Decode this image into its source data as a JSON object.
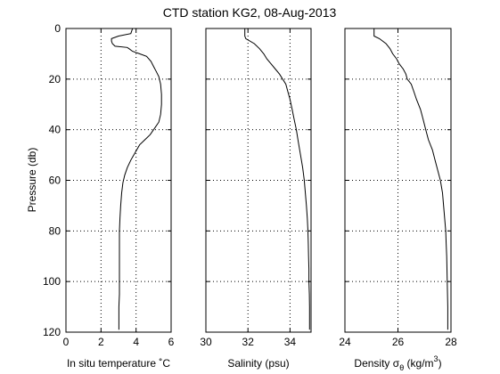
{
  "chart_data": {
    "title": "CTD station KG2, 08-Aug-2013",
    "shared_ylabel": "Pressure (db)",
    "shared_ylim": [
      0,
      120
    ],
    "y_reversed": true,
    "y_ticks": [
      0,
      20,
      40,
      60,
      80,
      100,
      120
    ],
    "grid": "dotted",
    "panels": [
      {
        "type": "line",
        "xlabel": "In situ temperature ˚C",
        "xlim": [
          0,
          6
        ],
        "x_ticks": [
          0,
          2,
          4,
          6
        ],
        "series": [
          {
            "points": [
              [
                3.8,
                0
              ],
              [
                3.7,
                2
              ],
              [
                3.0,
                3
              ],
              [
                2.6,
                4
              ],
              [
                2.6,
                5
              ],
              [
                2.65,
                6
              ],
              [
                2.8,
                7
              ],
              [
                3.5,
                7.5
              ],
              [
                3.6,
                8
              ],
              [
                3.8,
                9
              ],
              [
                4.2,
                10
              ],
              [
                4.6,
                11
              ],
              [
                4.85,
                13
              ],
              [
                5.0,
                15
              ],
              [
                5.15,
                17
              ],
              [
                5.3,
                19
              ],
              [
                5.4,
                22
              ],
              [
                5.45,
                26
              ],
              [
                5.45,
                30
              ],
              [
                5.4,
                34
              ],
              [
                5.3,
                37
              ],
              [
                5.1,
                39
              ],
              [
                4.8,
                42
              ],
              [
                4.5,
                44
              ],
              [
                4.2,
                46
              ],
              [
                3.95,
                49
              ],
              [
                3.7,
                52
              ],
              [
                3.5,
                55
              ],
              [
                3.35,
                58
              ],
              [
                3.25,
                61
              ],
              [
                3.18,
                65
              ],
              [
                3.12,
                70
              ],
              [
                3.08,
                75
              ],
              [
                3.05,
                80
              ],
              [
                3.05,
                85
              ],
              [
                3.05,
                90
              ],
              [
                3.05,
                95
              ],
              [
                3.05,
                100
              ],
              [
                3.05,
                105
              ],
              [
                3.02,
                110
              ],
              [
                3.02,
                115
              ],
              [
                3.02,
                119
              ]
            ]
          }
        ]
      },
      {
        "type": "line",
        "xlabel": "Salinity (psu)",
        "xlim": [
          30,
          35
        ],
        "x_ticks": [
          30,
          32,
          34
        ],
        "series": [
          {
            "points": [
              [
                31.85,
                0
              ],
              [
                31.85,
                3
              ],
              [
                31.9,
                4
              ],
              [
                32.3,
                6
              ],
              [
                32.55,
                8
              ],
              [
                32.75,
                10
              ],
              [
                32.9,
                12
              ],
              [
                33.1,
                14
              ],
              [
                33.3,
                16
              ],
              [
                33.5,
                18
              ],
              [
                33.65,
                20
              ],
              [
                33.8,
                22
              ],
              [
                33.9,
                25
              ],
              [
                34.0,
                28
              ],
              [
                34.1,
                32
              ],
              [
                34.2,
                36
              ],
              [
                34.3,
                40
              ],
              [
                34.4,
                45
              ],
              [
                34.5,
                50
              ],
              [
                34.6,
                55
              ],
              [
                34.68,
                60
              ],
              [
                34.73,
                65
              ],
              [
                34.78,
                70
              ],
              [
                34.82,
                75
              ],
              [
                34.85,
                80
              ],
              [
                34.87,
                85
              ],
              [
                34.88,
                90
              ],
              [
                34.9,
                95
              ],
              [
                34.9,
                100
              ],
              [
                34.92,
                105
              ],
              [
                34.93,
                110
              ],
              [
                34.93,
                115
              ],
              [
                34.93,
                119
              ]
            ]
          }
        ]
      },
      {
        "type": "line",
        "xlabel": "Density σ",
        "xlabel_subscript": "θ",
        "xlabel_unit_prefix": " (kg/m",
        "xlabel_unit_superscript": "3",
        "xlabel_unit_suffix": ")",
        "xlim": [
          24,
          28
        ],
        "x_ticks": [
          24,
          26,
          28
        ],
        "series": [
          {
            "points": [
              [
                25.1,
                0
              ],
              [
                25.1,
                3
              ],
              [
                25.3,
                4
              ],
              [
                25.55,
                6
              ],
              [
                25.7,
                8
              ],
              [
                25.8,
                10
              ],
              [
                25.95,
                12
              ],
              [
                26.05,
                14
              ],
              [
                26.2,
                16
              ],
              [
                26.3,
                18
              ],
              [
                26.35,
                20
              ],
              [
                26.5,
                22
              ],
              [
                26.6,
                25
              ],
              [
                26.7,
                28
              ],
              [
                26.85,
                32
              ],
              [
                26.95,
                36
              ],
              [
                27.05,
                40
              ],
              [
                27.15,
                44
              ],
              [
                27.3,
                48
              ],
              [
                27.4,
                52
              ],
              [
                27.5,
                56
              ],
              [
                27.6,
                60
              ],
              [
                27.68,
                65
              ],
              [
                27.72,
                70
              ],
              [
                27.76,
                75
              ],
              [
                27.8,
                80
              ],
              [
                27.82,
                85
              ],
              [
                27.84,
                90
              ],
              [
                27.85,
                95
              ],
              [
                27.86,
                100
              ],
              [
                27.87,
                105
              ],
              [
                27.88,
                110
              ],
              [
                27.88,
                115
              ],
              [
                27.88,
                119
              ]
            ]
          }
        ]
      }
    ]
  }
}
